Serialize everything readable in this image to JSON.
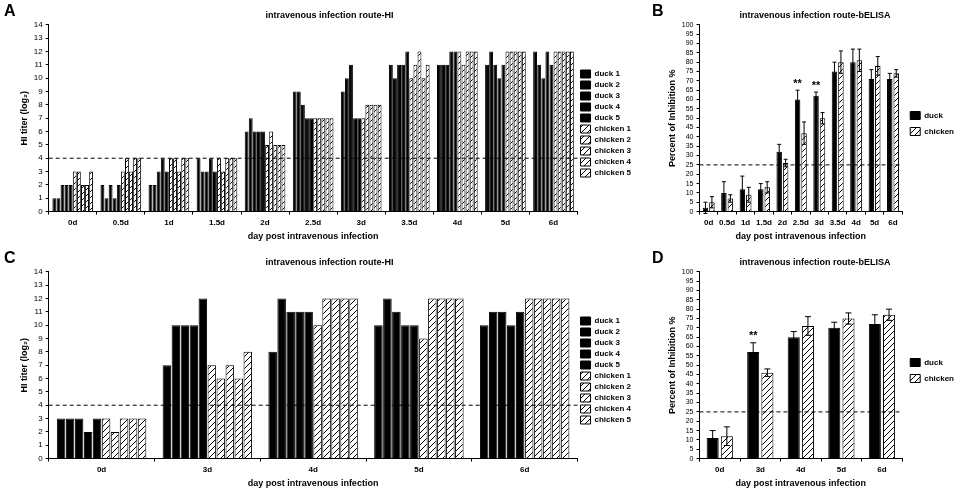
{
  "chart_data": [
    {
      "panel": "A",
      "type": "bar",
      "title": "intravenous infection route-HI",
      "x_label": "day post intravenous infection",
      "y_label": "HI titer (log₂)",
      "categories": [
        "0d",
        "0.5d",
        "1d",
        "1.5d",
        "2d",
        "2.5d",
        "3d",
        "3.5d",
        "4d",
        "5d",
        "6d"
      ],
      "ylim": [
        0,
        14
      ],
      "yticks": [
        0,
        1,
        2,
        3,
        4,
        5,
        6,
        7,
        8,
        9,
        10,
        11,
        12,
        13,
        14
      ],
      "grid": false,
      "legend": "right",
      "threshold": 4,
      "series": [
        {
          "name": "duck 1",
          "color": "#000000",
          "marker": "solid",
          "values": [
            1,
            2,
            2,
            4,
            6,
            9,
            9,
            11,
            11,
            11,
            12
          ]
        },
        {
          "name": "duck 2",
          "color": "#000000",
          "marker": "solid",
          "values": [
            1,
            1,
            2,
            3,
            7,
            9,
            10,
            10,
            11,
            12,
            11
          ]
        },
        {
          "name": "duck 3",
          "color": "#000000",
          "marker": "solid",
          "values": [
            2,
            2,
            3,
            3,
            6,
            8,
            11,
            11,
            11,
            11,
            10
          ]
        },
        {
          "name": "duck 4",
          "color": "#000000",
          "marker": "solid",
          "values": [
            2,
            1,
            4,
            4,
            6,
            7,
            7,
            11,
            12,
            10,
            12
          ]
        },
        {
          "name": "duck 5",
          "color": "#000000",
          "marker": "solid",
          "values": [
            2,
            2,
            3,
            3,
            6,
            7,
            7,
            12,
            12,
            11,
            11
          ]
        },
        {
          "name": "chicken 1",
          "color": "#000000",
          "marker": "hatched",
          "values": [
            3,
            3,
            4,
            4,
            5,
            7,
            7,
            10,
            12,
            12,
            12
          ]
        },
        {
          "name": "chicken 2",
          "color": "#000000",
          "marker": "hatched",
          "values": [
            3,
            4,
            4,
            3,
            6,
            7,
            8,
            11,
            11,
            12,
            12
          ]
        },
        {
          "name": "chicken 3",
          "color": "#000000",
          "marker": "hatched",
          "values": [
            2,
            3,
            3,
            4,
            5,
            7,
            8,
            12,
            12,
            12,
            12
          ]
        },
        {
          "name": "chicken 4",
          "color": "#000000",
          "marker": "hatched",
          "values": [
            2,
            4,
            4,
            4,
            5,
            7,
            8,
            10,
            12,
            12,
            12
          ]
        },
        {
          "name": "chicken 5",
          "color": "#000000",
          "marker": "hatched",
          "values": [
            3,
            4,
            4,
            4,
            5,
            7,
            8,
            11,
            12,
            12,
            12
          ]
        }
      ]
    },
    {
      "panel": "B",
      "type": "bar",
      "title": "intravenous infection route-bELISA",
      "x_label": "day post intravenous infection",
      "y_label": "Percent of Inhibition %",
      "categories": [
        "0d",
        "0.5d",
        "1d",
        "1.5d",
        "2d",
        "2.5d",
        "3d",
        "3.5d",
        "4d",
        "5d",
        "6d"
      ],
      "ylim": [
        0,
        100
      ],
      "yticks": [
        0,
        5,
        10,
        15,
        20,
        25,
        30,
        35,
        40,
        45,
        50,
        55,
        60,
        65,
        70,
        75,
        80,
        85,
        90,
        95,
        100
      ],
      "grid": false,
      "legend": "right",
      "threshold": 25,
      "annotations": [
        {
          "category": "2.5d",
          "series": "duck",
          "text": "**"
        },
        {
          "category": "3d",
          "series": "duck",
          "text": "**"
        }
      ],
      "series": [
        {
          "name": "duck",
          "color": "#000000",
          "marker": "solid",
          "values": [
            2,
            10,
            12,
            12,
            32,
            60,
            62,
            75,
            80,
            71,
            71
          ],
          "errors": [
            3,
            6,
            7,
            3,
            4,
            5,
            2,
            5,
            7,
            5,
            3
          ]
        },
        {
          "name": "chicken",
          "color": "#000000",
          "marker": "hatched",
          "values": [
            5,
            7,
            9,
            13,
            26,
            42,
            50,
            80,
            81,
            78,
            74
          ],
          "errors": [
            3,
            2,
            4,
            3,
            2,
            6,
            3,
            6,
            6,
            5,
            2
          ]
        }
      ]
    },
    {
      "panel": "C",
      "type": "bar",
      "title": "intravenous infection route-HI",
      "x_label": "day post intravenous infection",
      "y_label": "HI titer (log₂)",
      "categories": [
        "0d",
        "3d",
        "4d",
        "5d",
        "6d"
      ],
      "ylim": [
        0,
        14
      ],
      "yticks": [
        0,
        1,
        2,
        3,
        4,
        5,
        6,
        7,
        8,
        9,
        10,
        11,
        12,
        13,
        14
      ],
      "grid": false,
      "legend": "right",
      "threshold": 4,
      "series": [
        {
          "name": "duck 1",
          "color": "#000000",
          "marker": "solid",
          "values": [
            3,
            7,
            8,
            10,
            10
          ]
        },
        {
          "name": "duck 2",
          "color": "#000000",
          "marker": "solid",
          "values": [
            3,
            10,
            12,
            12,
            11
          ]
        },
        {
          "name": "duck 3",
          "color": "#000000",
          "marker": "solid",
          "values": [
            3,
            10,
            11,
            11,
            11
          ]
        },
        {
          "name": "duck 4",
          "color": "#000000",
          "marker": "solid",
          "values": [
            2,
            10,
            11,
            10,
            10
          ]
        },
        {
          "name": "duck 5",
          "color": "#000000",
          "marker": "solid",
          "values": [
            3,
            12,
            11,
            10,
            11
          ]
        },
        {
          "name": "chicken 1",
          "color": "#000000",
          "marker": "hatched",
          "values": [
            3,
            7,
            10,
            9,
            12
          ]
        },
        {
          "name": "chicken 2",
          "color": "#000000",
          "marker": "hatched",
          "values": [
            2,
            6,
            12,
            12,
            12
          ]
        },
        {
          "name": "chicken 3",
          "color": "#000000",
          "marker": "hatched",
          "values": [
            3,
            7,
            12,
            12,
            12
          ]
        },
        {
          "name": "chicken 4",
          "color": "#000000",
          "marker": "hatched",
          "values": [
            3,
            6,
            12,
            12,
            12
          ]
        },
        {
          "name": "chicken 5",
          "color": "#000000",
          "marker": "hatched",
          "values": [
            3,
            8,
            12,
            12,
            12
          ]
        }
      ]
    },
    {
      "panel": "D",
      "type": "bar",
      "title": "intravenous infection route-bELISA",
      "x_label": "day post intravenous infection",
      "y_label": "Percent of Inhibition %",
      "categories": [
        "0d",
        "3d",
        "4d",
        "5d",
        "6d"
      ],
      "ylim": [
        0,
        100
      ],
      "yticks": [
        0,
        5,
        10,
        15,
        20,
        25,
        30,
        35,
        40,
        45,
        50,
        55,
        60,
        65,
        70,
        75,
        80,
        85,
        90,
        95,
        100
      ],
      "grid": false,
      "legend": "right",
      "threshold": 25,
      "annotations": [
        {
          "category": "3d",
          "series": "duck",
          "text": "**"
        }
      ],
      "series": [
        {
          "name": "duck",
          "color": "#000000",
          "marker": "solid",
          "values": [
            11,
            57,
            65,
            70,
            72
          ],
          "errors": [
            4,
            5,
            3,
            3,
            5
          ]
        },
        {
          "name": "chicken",
          "color": "#000000",
          "marker": "hatched",
          "values": [
            12,
            46,
            71,
            75,
            77
          ],
          "errors": [
            5,
            2,
            5,
            3,
            3
          ]
        }
      ]
    }
  ]
}
